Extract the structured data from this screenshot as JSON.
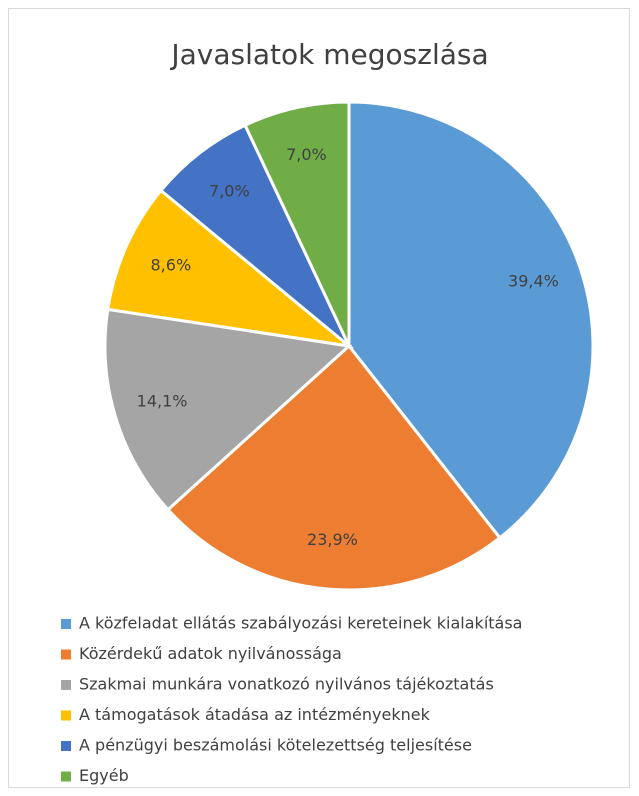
{
  "chart_data": {
    "type": "pie",
    "title": "Javaslatok megoszlása",
    "categories": [
      "A közfeladat ellátás szabályozási kereteinek kialakítása",
      "Közérdekű adatok nyilvánossága",
      "Szakmai munkára vonatkozó nyilvános tájékoztatás",
      "A támogatások átadása az intézményeknek",
      "A pénzügyi beszámolási kötelezettség teljesítése",
      "Egyéb"
    ],
    "values": [
      39.4,
      23.9,
      14.1,
      8.6,
      7.0,
      7.0
    ],
    "value_labels": [
      "39,4%",
      "23,9%",
      "14,1%",
      "8,6%",
      "7,0%",
      "7,0%"
    ],
    "colors": [
      "#5b9bd5",
      "#ed7d31",
      "#a5a5a5",
      "#ffc000",
      "#4472c4",
      "#70ad47"
    ],
    "legend": "bottom"
  }
}
